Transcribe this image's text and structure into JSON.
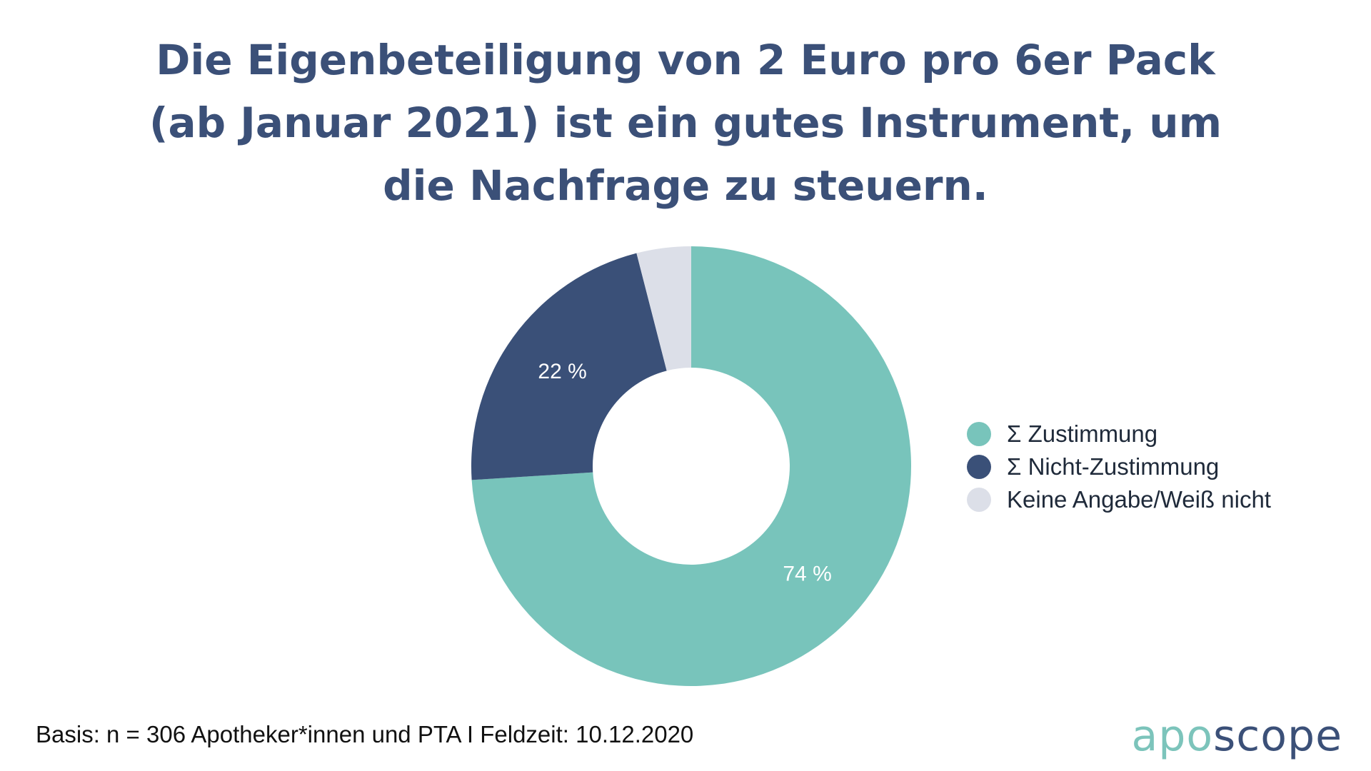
{
  "title": "Die Eigenbeteiligung von 2 Euro pro 6er Pack (ab Januar 2021) ist ein gutes Instrument, um die Nachfrage zu steuern.",
  "footnote": "Basis: n = 306 Apotheker*innen und PTA I Feldzeit: 10.12.2020",
  "logo": {
    "part1": "apo",
    "part2": "scope"
  },
  "chart_data": {
    "type": "pie",
    "variant": "donut",
    "title": "Die Eigenbeteiligung von 2 Euro pro 6er Pack (ab Januar 2021) ist ein gutes Instrument, um die Nachfrage zu steuern.",
    "categories": [
      "Σ Zustimmung",
      "Σ Nicht-Zustimmung",
      "Keine Angabe/Weiß nicht"
    ],
    "values": [
      74,
      22,
      4
    ],
    "data_labels": [
      "74 %",
      "22 %",
      ""
    ],
    "colors": [
      "#78c4bb",
      "#3a5078",
      "#dcdfe8"
    ],
    "legend_position": "right"
  }
}
